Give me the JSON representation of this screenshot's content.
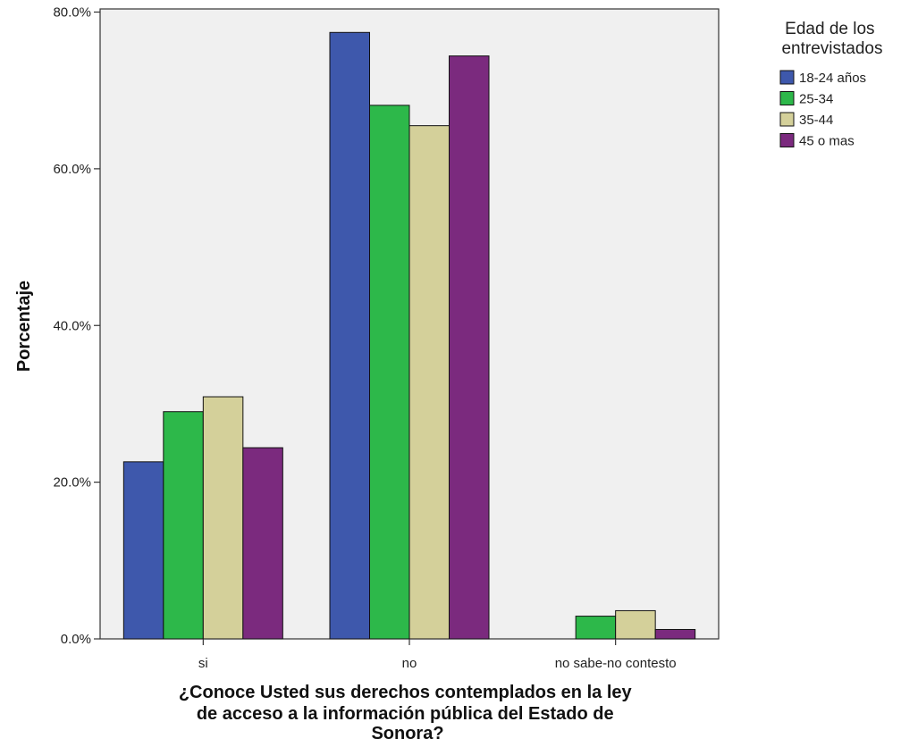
{
  "chart_data": {
    "type": "bar",
    "categories": [
      "si",
      "no",
      "no sabe-no contesto"
    ],
    "series": [
      {
        "name": "18-24 años",
        "color": "#3E58AC",
        "values": [
          22.6,
          77.4,
          0.0
        ]
      },
      {
        "name": "25-34",
        "color": "#2DB84A",
        "values": [
          29.0,
          68.1,
          2.9
        ]
      },
      {
        "name": "35-44",
        "color": "#D4D09A",
        "values": [
          30.9,
          65.5,
          3.6
        ]
      },
      {
        "name": "45 o mas",
        "color": "#7B2A7E",
        "values": [
          24.4,
          74.4,
          1.2
        ]
      }
    ],
    "y_ticks": [
      0,
      20,
      40,
      60,
      80
    ],
    "y_tick_labels": [
      "0.0%",
      "20.0%",
      "40.0%",
      "60.0%",
      "80.0%"
    ],
    "ylim": [
      0,
      80.4
    ],
    "ylabel": "Porcentaje",
    "xlabel_lines": [
      "¿Conoce Usted sus derechos contemplados en la ley",
      "de acceso a la información pública del Estado de",
      "Sonora?"
    ],
    "legend": {
      "title_lines": [
        "Edad de los",
        "entrevistados"
      ],
      "placement": "right"
    },
    "plot_background": "#F0F0F0",
    "grid": false
  }
}
